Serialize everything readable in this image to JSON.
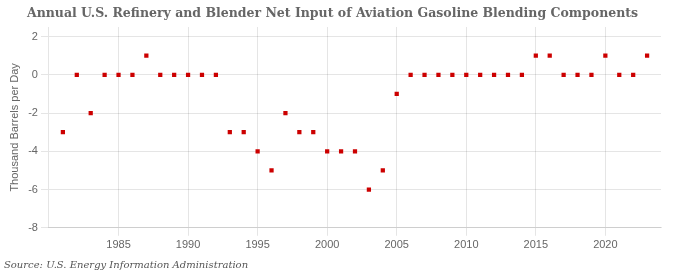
{
  "chart_data": {
    "type": "scatter",
    "title": "Annual U.S. Refinery and Blender Net Input of Aviation Gasoline Blending Components",
    "y_label": "Thousand Barrels per Day",
    "annotations": [
      "Source: U.S. Energy Information Administration"
    ],
    "x": [
      1981,
      1982,
      1983,
      1984,
      1985,
      1986,
      1987,
      1988,
      1989,
      1990,
      1991,
      1992,
      1993,
      1994,
      1995,
      1996,
      1997,
      1998,
      1999,
      2000,
      2001,
      2002,
      2003,
      2004,
      2005,
      2006,
      2007,
      2008,
      2009,
      2010,
      2011,
      2012,
      2013,
      2014,
      2015,
      2016,
      2017,
      2018,
      2019,
      2020,
      2021,
      2022,
      2023
    ],
    "values": [
      -3,
      0,
      -2,
      0,
      0,
      0,
      1,
      0,
      0,
      0,
      0,
      0,
      -3,
      -3,
      -4,
      -5,
      -2,
      -3,
      -3,
      -4,
      -4,
      -4,
      -6,
      -5,
      -1,
      0,
      0,
      0,
      0,
      0,
      0,
      0,
      0,
      0,
      1,
      1,
      0,
      0,
      0,
      1,
      0,
      0,
      1
    ],
    "color": "#cc0000",
    "marker": "square",
    "grid": true,
    "xlim": [
      1980,
      2024
    ],
    "xticks": [
      1985,
      1990,
      1995,
      2000,
      2005,
      2010,
      2015,
      2020
    ],
    "ylim": [
      -8,
      2.5
    ],
    "yticks": [
      -8,
      -6,
      -4,
      -2,
      0,
      2
    ]
  }
}
